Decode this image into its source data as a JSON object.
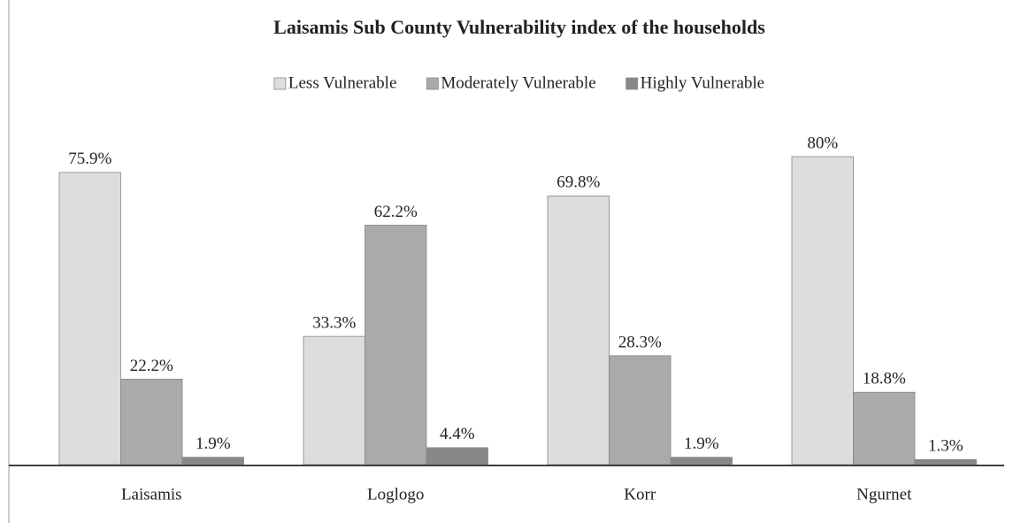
{
  "chart_data": {
    "type": "bar",
    "title": "Laisamis Sub County Vulnerability index of the households",
    "categories": [
      "Laisamis",
      "Loglogo",
      "Korr",
      "Ngurnet"
    ],
    "series": [
      {
        "name": "Less Vulnerable",
        "color": "#dddddd",
        "values": [
          75.9,
          33.3,
          69.8,
          80
        ],
        "value_labels": [
          "75.9%",
          "33.3%",
          "69.8%",
          "80%"
        ]
      },
      {
        "name": "Moderately Vulnerable",
        "color": "#aaaaaa",
        "values": [
          22.2,
          62.2,
          28.3,
          18.8
        ],
        "value_labels": [
          "22.2%",
          "62.2%",
          "28.3%",
          "18.8%"
        ]
      },
      {
        "name": "Highly Vulnerable",
        "color": "#888888",
        "values": [
          1.9,
          4.4,
          1.9,
          1.3
        ],
        "value_labels": [
          "1.9%",
          "4.4%",
          "1.9%",
          "1.3%"
        ]
      }
    ],
    "legend": "top"
  }
}
